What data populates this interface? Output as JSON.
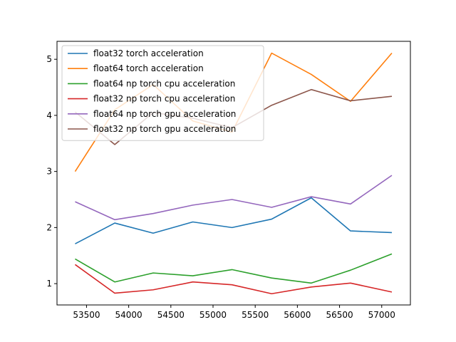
{
  "chart_data": {
    "type": "line",
    "title": "",
    "xlabel": "",
    "ylabel": "",
    "xlim": [
      53150,
      57340
    ],
    "ylim": [
      0.62,
      5.32
    ],
    "x": [
      53365,
      53835,
      54290,
      54760,
      55225,
      55695,
      56165,
      56630,
      57120
    ],
    "xticks": [
      53500,
      54000,
      54500,
      55000,
      55500,
      56000,
      56500,
      57000
    ],
    "xtick_labels": [
      "53500",
      "54000",
      "54500",
      "55000",
      "55500",
      "56000",
      "56500",
      "57000"
    ],
    "yticks": [
      1,
      2,
      3,
      4,
      5
    ],
    "ytick_labels": [
      "1",
      "2",
      "3",
      "4",
      "5"
    ],
    "grid": false,
    "legend_position": "upper-left",
    "series": [
      {
        "name": "float32 torch acceleration",
        "color": "#1f77b4",
        "values": [
          1.71,
          2.08,
          1.9,
          2.1,
          2.0,
          2.15,
          2.53,
          1.94,
          1.91
        ]
      },
      {
        "name": "float64 torch acceleration",
        "color": "#ff7f0e",
        "values": [
          3.0,
          4.1,
          4.55,
          3.9,
          3.7,
          5.11,
          4.73,
          4.25,
          5.11
        ]
      },
      {
        "name": "float64 np torch cpu acceleration",
        "color": "#2ca02c",
        "values": [
          1.44,
          1.03,
          1.19,
          1.14,
          1.25,
          1.1,
          1.01,
          1.24,
          1.53
        ]
      },
      {
        "name": "float32 np torch cpu acceleration",
        "color": "#d62728",
        "values": [
          1.34,
          0.83,
          0.89,
          1.03,
          0.98,
          0.82,
          0.94,
          1.01,
          0.85
        ]
      },
      {
        "name": "float64 np torch gpu acceleration",
        "color": "#9467bd",
        "values": [
          2.46,
          2.14,
          2.25,
          2.4,
          2.5,
          2.36,
          2.55,
          2.42,
          2.93
        ]
      },
      {
        "name": "float32 np torch gpu acceleration",
        "color": "#8c564b",
        "values": [
          4.06,
          3.48,
          4.05,
          3.95,
          3.78,
          4.18,
          4.46,
          4.26,
          4.34
        ]
      }
    ]
  }
}
